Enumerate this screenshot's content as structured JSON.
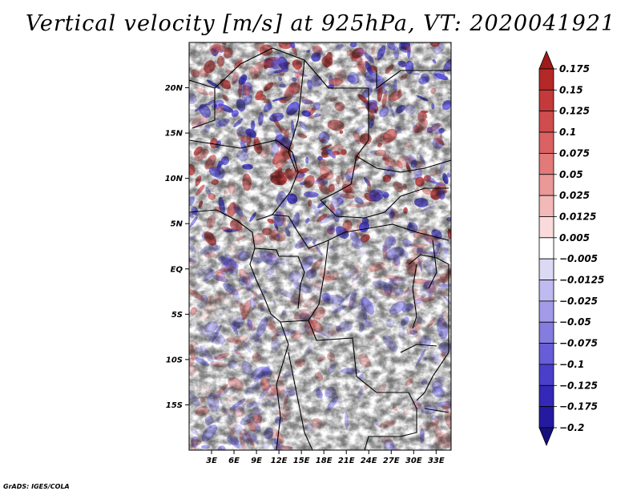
{
  "title": "Vertical velocity [m/s] at 925hPa, VT: 2020041921",
  "credit": "GrADS: IGES/COLA",
  "colors": {
    "positive": "#c62828",
    "negative": "#3f33c9",
    "border": "#000000"
  },
  "chart_data": {
    "type": "heatmap",
    "title": "Vertical velocity [m/s] at 925hPa, VT: 2020041921",
    "variable": "Vertical velocity",
    "units": "m/s",
    "level": "925hPa",
    "valid_time": "2020041921",
    "x_axis": {
      "range": [
        0,
        35
      ],
      "ticks": [
        3,
        6,
        9,
        12,
        15,
        18,
        21,
        24,
        27,
        30,
        33
      ],
      "tick_labels": [
        "3E",
        "6E",
        "9E",
        "12E",
        "15E",
        "18E",
        "21E",
        "24E",
        "27E",
        "30E",
        "33E"
      ]
    },
    "y_axis": {
      "range": [
        -20,
        25
      ],
      "ticks": [
        20,
        15,
        10,
        5,
        0,
        -5,
        -10,
        -15
      ],
      "tick_labels": [
        "20N",
        "15N",
        "10N",
        "5N",
        "EQ",
        "5S",
        "10S",
        "15S"
      ]
    },
    "colorbar": {
      "levels": [
        0.175,
        0.15,
        0.125,
        0.1,
        0.075,
        0.05,
        0.025,
        0.0125,
        0.005,
        -0.005,
        -0.0125,
        -0.025,
        -0.05,
        -0.075,
        -0.1,
        -0.125,
        -0.175,
        -0.2
      ],
      "labels": [
        "0.175",
        "0.15",
        "0.125",
        "0.1",
        "0.075",
        "0.05",
        "0.025",
        "0.0125",
        "0.005",
        "−0.005",
        "−0.0125",
        "−0.025",
        "−0.05",
        "−0.075",
        "−0.1",
        "−0.125",
        "−0.175",
        "−0.2"
      ],
      "colors": [
        "#a01a1a",
        "#b52828",
        "#c43a3a",
        "#d04d4d",
        "#da6262",
        "#e27a7a",
        "#eb9898",
        "#f3b8b8",
        "#fadada",
        "#ffffff",
        "#dcd9f5",
        "#bfbaf0",
        "#a39be8",
        "#857ce0",
        "#675dd7",
        "#4a3fcb",
        "#3428b8",
        "#241aa0",
        "#14107d"
      ],
      "orientation": "vertical",
      "extend": "both"
    }
  }
}
